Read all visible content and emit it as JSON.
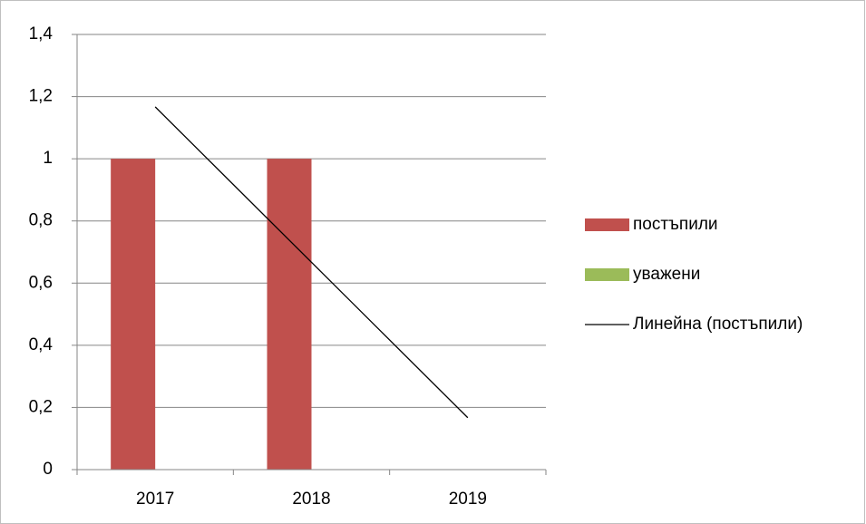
{
  "chart_data": {
    "type": "bar",
    "categories": [
      "2017",
      "2018",
      "2019"
    ],
    "series": [
      {
        "name": "постъпили",
        "color": "#c0504d",
        "values": [
          1,
          1,
          0
        ]
      },
      {
        "name": "уважени",
        "color": "#9bbb59",
        "values": [
          0,
          0,
          0
        ]
      },
      {
        "name": "Линейна (постъпили)",
        "type": "line",
        "color": "#000000",
        "values": [
          1.167,
          0.667,
          0.167
        ]
      }
    ],
    "ylim": [
      0,
      1.4
    ],
    "yticks": [
      0,
      {
        "value": 0.2,
        "label": "0,2"
      },
      {
        "value": 0.4,
        "label": "0,4"
      },
      {
        "value": 0.6,
        "label": "0,6"
      },
      {
        "value": 0.8,
        "label": "0,8"
      },
      1,
      {
        "value": 1.2,
        "label": "1,2"
      },
      {
        "value": 1.4,
        "label": "1,4"
      }
    ],
    "grid": true,
    "legend": "right"
  }
}
